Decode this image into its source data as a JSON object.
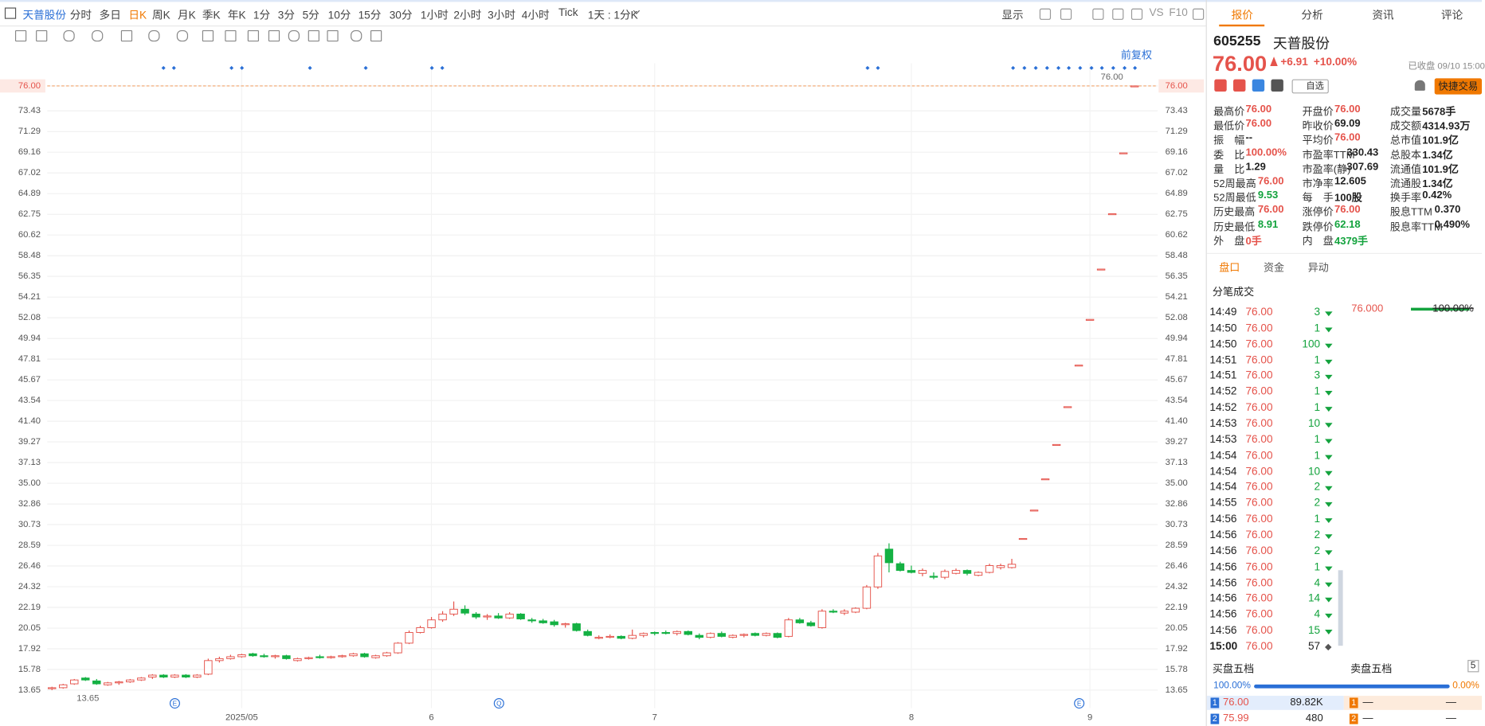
{
  "toolbar": {
    "tabs": [
      "天普股份",
      "分时",
      "多日",
      "日K",
      "周K",
      "月K",
      "季K",
      "年K",
      "1分",
      "3分",
      "5分",
      "10分",
      "15分",
      "30分",
      "1小时",
      "2小时",
      "3小时",
      "4小时",
      "Tick",
      "1天 : 1分K"
    ],
    "right": [
      "显示",
      "VS",
      "F10"
    ]
  },
  "chart_data": {
    "type": "candlestick",
    "adjust_label": "前复权",
    "up_color": "#e5534b",
    "down_color": "#14b143",
    "ylim": [
      11.8,
      78.34
    ],
    "yticks": [
      13.65,
      15.78,
      17.92,
      20.05,
      22.19,
      24.32,
      26.46,
      28.59,
      30.73,
      32.86,
      {
        "value": 35,
        "label": "35.00"
      },
      37.13,
      39.27,
      {
        "value": 41.4,
        "label": "41.40"
      },
      43.54,
      45.67,
      47.81,
      49.94,
      52.08,
      54.21,
      56.35,
      58.48,
      60.62,
      62.75,
      64.89,
      67.02,
      69.16,
      71.29,
      73.43,
      {
        "value": 76,
        "label": "76.00"
      }
    ],
    "last_price": {
      "value": 76,
      "label": "76.00"
    },
    "high_label": "76.00",
    "low_label": "13.65",
    "event_icons": [
      "E",
      "Q",
      "E"
    ],
    "categories": [
      null,
      null,
      null,
      null,
      null,
      null,
      null,
      null,
      null,
      null,
      null,
      null,
      null,
      null,
      null,
      null,
      null,
      "2025/05",
      null,
      null,
      null,
      null,
      null,
      null,
      null,
      null,
      null,
      null,
      null,
      null,
      null,
      null,
      null,
      null,
      "6",
      null,
      null,
      null,
      null,
      null,
      null,
      null,
      null,
      null,
      null,
      null,
      null,
      null,
      null,
      null,
      null,
      null,
      null,
      null,
      "7",
      null,
      null,
      null,
      null,
      null,
      null,
      null,
      null,
      null,
      null,
      null,
      null,
      null,
      null,
      null,
      null,
      null,
      null,
      null,
      null,
      null,
      null,
      "8",
      null,
      null,
      null,
      null,
      null,
      null,
      null,
      null,
      null,
      null,
      null,
      null,
      null,
      null,
      null,
      "9",
      null,
      null,
      null,
      null
    ],
    "candles": [
      [
        13.8,
        14.0,
        13.65,
        13.9
      ],
      [
        13.9,
        14.3,
        13.8,
        14.2
      ],
      [
        14.3,
        14.8,
        14.2,
        14.7
      ],
      [
        14.9,
        15.0,
        14.6,
        14.7
      ],
      [
        14.6,
        14.8,
        14.2,
        14.3
      ],
      [
        14.2,
        14.5,
        14.1,
        14.4
      ],
      [
        14.4,
        14.6,
        14.2,
        14.5
      ],
      [
        14.5,
        14.8,
        14.4,
        14.7
      ],
      [
        14.7,
        15.0,
        14.6,
        14.9
      ],
      [
        15.0,
        15.3,
        14.8,
        15.2
      ],
      [
        15.2,
        15.3,
        14.9,
        15.0
      ],
      [
        15.0,
        15.3,
        14.9,
        15.2
      ],
      [
        15.2,
        15.3,
        14.9,
        15.0
      ],
      [
        15.0,
        15.3,
        14.9,
        15.2
      ],
      [
        15.3,
        16.9,
        15.2,
        16.7
      ],
      [
        16.7,
        17.1,
        16.5,
        16.9
      ],
      [
        16.9,
        17.3,
        16.8,
        17.1
      ],
      [
        17.1,
        17.4,
        17.0,
        17.3
      ],
      [
        17.4,
        17.5,
        17.1,
        17.2
      ],
      [
        17.2,
        17.4,
        17.0,
        17.1
      ],
      [
        17.1,
        17.3,
        16.9,
        17.2
      ],
      [
        17.2,
        17.3,
        16.8,
        16.9
      ],
      [
        16.7,
        17.0,
        16.6,
        16.9
      ],
      [
        16.9,
        17.1,
        16.8,
        17.0
      ],
      [
        17.1,
        17.3,
        16.9,
        17.0
      ],
      [
        17.0,
        17.2,
        16.9,
        17.1
      ],
      [
        17.1,
        17.3,
        17.0,
        17.2
      ],
      [
        17.2,
        17.5,
        17.1,
        17.4
      ],
      [
        17.4,
        17.5,
        17.0,
        17.1
      ],
      [
        17.0,
        17.3,
        16.9,
        17.2
      ],
      [
        17.2,
        17.6,
        17.1,
        17.5
      ],
      [
        17.5,
        18.6,
        17.4,
        18.5
      ],
      [
        18.5,
        19.8,
        18.4,
        19.6
      ],
      [
        19.6,
        20.3,
        19.5,
        20.1
      ],
      [
        20.1,
        21.2,
        20.0,
        20.9
      ],
      [
        20.9,
        21.8,
        20.7,
        21.5
      ],
      [
        21.5,
        22.8,
        21.3,
        22.0
      ],
      [
        22.0,
        22.4,
        21.4,
        21.6
      ],
      [
        21.5,
        21.7,
        21.0,
        21.2
      ],
      [
        21.2,
        21.5,
        20.9,
        21.3
      ],
      [
        21.3,
        21.6,
        21.0,
        21.1
      ],
      [
        21.1,
        21.7,
        21.0,
        21.5
      ],
      [
        21.5,
        21.6,
        20.9,
        21.0
      ],
      [
        20.9,
        21.1,
        20.6,
        20.8
      ],
      [
        20.8,
        21.0,
        20.5,
        20.6
      ],
      [
        20.7,
        20.9,
        20.2,
        20.4
      ],
      [
        20.4,
        20.6,
        20.1,
        20.5
      ],
      [
        20.5,
        20.6,
        19.7,
        19.8
      ],
      [
        19.7,
        19.9,
        19.2,
        19.3
      ],
      [
        19.0,
        19.3,
        18.9,
        19.1
      ],
      [
        19.1,
        19.4,
        19.0,
        19.2
      ],
      [
        19.2,
        19.3,
        18.9,
        19.0
      ],
      [
        19.0,
        19.9,
        18.9,
        19.3
      ],
      [
        19.3,
        19.6,
        19.1,
        19.5
      ],
      [
        19.6,
        19.7,
        19.3,
        19.5
      ],
      [
        19.6,
        19.8,
        19.4,
        19.5
      ],
      [
        19.5,
        19.8,
        19.3,
        19.7
      ],
      [
        19.7,
        19.8,
        19.3,
        19.4
      ],
      [
        19.3,
        19.5,
        18.9,
        19.1
      ],
      [
        19.1,
        19.6,
        19.0,
        19.5
      ],
      [
        19.5,
        19.7,
        19.1,
        19.2
      ],
      [
        19.1,
        19.4,
        19.0,
        19.3
      ],
      [
        19.3,
        19.5,
        19.1,
        19.4
      ],
      [
        19.5,
        19.6,
        19.2,
        19.3
      ],
      [
        19.3,
        19.6,
        19.2,
        19.5
      ],
      [
        19.5,
        19.6,
        19.0,
        19.1
      ],
      [
        19.2,
        21.1,
        19.1,
        20.9
      ],
      [
        20.9,
        21.1,
        20.5,
        20.6
      ],
      [
        20.6,
        20.8,
        20.2,
        20.3
      ],
      [
        20.1,
        22.0,
        20.0,
        21.8
      ],
      [
        21.8,
        22.0,
        21.6,
        21.7
      ],
      [
        21.6,
        22.0,
        21.4,
        21.8
      ],
      [
        21.7,
        22.2,
        21.6,
        22.1
      ],
      [
        22.1,
        24.5,
        22.0,
        24.3
      ],
      [
        24.3,
        27.8,
        24.1,
        27.5
      ],
      [
        28.2,
        28.8,
        25.8,
        26.8
      ],
      [
        26.7,
        26.9,
        25.9,
        26.0
      ],
      [
        26.0,
        26.5,
        25.7,
        25.8
      ],
      [
        25.7,
        26.2,
        25.4,
        26.0
      ],
      [
        25.4,
        25.8,
        25.1,
        25.3
      ],
      [
        25.3,
        26.1,
        25.1,
        25.9
      ],
      [
        25.7,
        26.2,
        25.6,
        26.0
      ],
      [
        26.0,
        26.1,
        25.5,
        25.7
      ],
      [
        25.5,
        25.9,
        25.4,
        25.8
      ],
      [
        25.8,
        26.7,
        25.7,
        26.5
      ],
      [
        26.3,
        26.7,
        26.1,
        26.5
      ],
      [
        26.3,
        27.2,
        26.2,
        26.64
      ],
      [
        29.3,
        29.3,
        29.3,
        29.3
      ],
      [
        32.23,
        32.23,
        32.23,
        32.23
      ],
      [
        35.45,
        35.45,
        35.45,
        35.45
      ],
      [
        39.0,
        39.0,
        39.0,
        39.0
      ],
      [
        42.9,
        42.9,
        42.9,
        42.9
      ],
      [
        47.19,
        47.19,
        47.19,
        47.19
      ],
      [
        51.91,
        51.91,
        51.91,
        51.91
      ],
      [
        57.1,
        57.1,
        57.1,
        57.1
      ],
      [
        62.81,
        62.81,
        62.81,
        62.81
      ],
      [
        69.09,
        69.09,
        69.09,
        69.09
      ],
      [
        76.0,
        76.0,
        76.0,
        76.0
      ]
    ]
  },
  "panel": {
    "tabs": [
      "报价",
      "分析",
      "资讯",
      "评论"
    ],
    "code": "605255",
    "name": "天普股份",
    "price": "76.00",
    "change": "+6.91",
    "pct": "+10.00%",
    "status": "已收盘 09/10 15:00",
    "watch": "自选",
    "trade": "快捷交易",
    "stats": [
      [
        {
          "label": "最高价",
          "value": "76.00"
        },
        {
          "label": "开盘价",
          "value": "76.00"
        },
        {
          "label": "成交量",
          "value": "5678手"
        }
      ],
      [
        {
          "label": "最低价",
          "value": "76.00"
        },
        {
          "label": "昨收价",
          "value": "69.09"
        },
        {
          "label": "成交额",
          "value": "4314.93万"
        }
      ],
      [
        {
          "label": "振　幅",
          "value": "--"
        },
        {
          "label": "平均价",
          "value": "76.00"
        },
        {
          "label": "总市值",
          "value": "101.9亿"
        }
      ],
      [
        {
          "label": "委　比",
          "value": "100.00%"
        },
        {
          "label": "市盈率TTM",
          "value": "330.43"
        },
        {
          "label": "总股本",
          "value": "1.34亿"
        }
      ],
      [
        {
          "label": "量　比",
          "value": "1.29"
        },
        {
          "label": "市盈率(静)",
          "value": "307.69"
        },
        {
          "label": "流通值",
          "value": "101.9亿"
        }
      ],
      [
        {
          "label": "52周最高",
          "value": "76.00"
        },
        {
          "label": "市净率",
          "value": "12.605"
        },
        {
          "label": "流通股",
          "value": "1.34亿"
        }
      ],
      [
        {
          "label": "52周最低",
          "value": "9.53"
        },
        {
          "label": "每　手",
          "value": "100股"
        },
        {
          "label": "换手率",
          "value": "0.42%"
        }
      ],
      [
        {
          "label": "历史最高",
          "value": "76.00"
        },
        {
          "label": "涨停价",
          "value": "76.00"
        },
        {
          "label": "股息TTM",
          "value": "0.370"
        }
      ],
      [
        {
          "label": "历史最低",
          "value": "8.91"
        },
        {
          "label": "跌停价",
          "value": "62.18"
        },
        {
          "label": "股息率TTM",
          "value": "0.490%"
        }
      ],
      [
        {
          "label": "外　盘",
          "value": "0手"
        },
        {
          "label": "内　盘",
          "value": "4379手"
        }
      ]
    ],
    "subtabs": [
      "盘口",
      "资金",
      "异动"
    ],
    "trades_title": "分笔成交",
    "trades": [
      [
        "14:49",
        "76.00",
        "3"
      ],
      [
        "14:50",
        "76.00",
        "1"
      ],
      [
        "14:50",
        "76.00",
        "100"
      ],
      [
        "14:51",
        "76.00",
        "1"
      ],
      [
        "14:51",
        "76.00",
        "3"
      ],
      [
        "14:52",
        "76.00",
        "1"
      ],
      [
        "14:52",
        "76.00",
        "1"
      ],
      [
        "14:53",
        "76.00",
        "10"
      ],
      [
        "14:53",
        "76.00",
        "1"
      ],
      [
        "14:54",
        "76.00",
        "1"
      ],
      [
        "14:54",
        "76.00",
        "10"
      ],
      [
        "14:54",
        "76.00",
        "2"
      ],
      [
        "14:55",
        "76.00",
        "2"
      ],
      [
        "14:56",
        "76.00",
        "1"
      ],
      [
        "14:56",
        "76.00",
        "2"
      ],
      [
        "14:56",
        "76.00",
        "2"
      ],
      [
        "14:56",
        "76.00",
        "1"
      ],
      [
        "14:56",
        "76.00",
        "4"
      ],
      [
        "14:56",
        "76.00",
        "14"
      ],
      [
        "14:56",
        "76.00",
        "4"
      ],
      [
        "14:56",
        "76.00",
        "15"
      ],
      [
        "15:00",
        "76.00",
        "57"
      ]
    ],
    "dist_price": "76.000",
    "dist_pct": "100.00%",
    "book": {
      "bid_title": "买盘五档",
      "ask_title": "卖盘五档",
      "levels": "5",
      "bid_pct": "100.00%",
      "ask_pct": "0.00%",
      "rows": [
        [
          "1",
          "76.00",
          "89.82K",
          "1",
          "—",
          "—"
        ],
        [
          "2",
          "75.99",
          "480",
          "2",
          "—",
          "—"
        ]
      ]
    }
  }
}
